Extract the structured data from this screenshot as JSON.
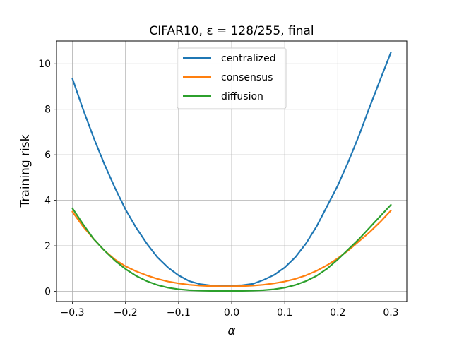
{
  "chart_data": {
    "type": "line",
    "title": "CIFAR10, ε = 128/255, final",
    "xlabel": "α",
    "ylabel": "Training risk",
    "xlim": [
      -0.33,
      0.33
    ],
    "ylim": [
      -0.45,
      11.0
    ],
    "xticks": [
      -0.3,
      -0.2,
      -0.1,
      0.0,
      0.1,
      0.2,
      0.3
    ],
    "xtick_labels": [
      "−0.3",
      "−0.2",
      "−0.1",
      "0.0",
      "0.1",
      "0.2",
      "0.3"
    ],
    "yticks": [
      0,
      2,
      4,
      6,
      8,
      10
    ],
    "ytick_labels": [
      "0",
      "2",
      "4",
      "6",
      "8",
      "10"
    ],
    "grid": true,
    "legend_position": "top-center",
    "x": [
      -0.3,
      -0.28,
      -0.26,
      -0.24,
      -0.22,
      -0.2,
      -0.18,
      -0.16,
      -0.14,
      -0.12,
      -0.1,
      -0.08,
      -0.06,
      -0.04,
      -0.02,
      0.0,
      0.02,
      0.04,
      0.06,
      0.08,
      0.1,
      0.12,
      0.14,
      0.16,
      0.18,
      0.2,
      0.22,
      0.24,
      0.26,
      0.28,
      0.3
    ],
    "series": [
      {
        "name": "centralized",
        "color": "#1f77b4",
        "values": [
          9.35,
          8.0,
          6.75,
          5.6,
          4.55,
          3.6,
          2.8,
          2.1,
          1.5,
          1.05,
          0.7,
          0.45,
          0.32,
          0.26,
          0.25,
          0.25,
          0.27,
          0.33,
          0.5,
          0.72,
          1.05,
          1.5,
          2.1,
          2.85,
          3.75,
          4.65,
          5.7,
          6.85,
          8.1,
          9.3,
          10.5
        ]
      },
      {
        "name": "consensus",
        "color": "#ff7f0e",
        "values": [
          3.5,
          2.85,
          2.3,
          1.8,
          1.4,
          1.1,
          0.88,
          0.7,
          0.55,
          0.43,
          0.35,
          0.29,
          0.25,
          0.23,
          0.22,
          0.22,
          0.23,
          0.25,
          0.29,
          0.35,
          0.43,
          0.55,
          0.7,
          0.9,
          1.15,
          1.45,
          1.8,
          2.2,
          2.6,
          3.05,
          3.55
        ]
      },
      {
        "name": "diffusion",
        "color": "#2ca02c",
        "values": [
          3.65,
          2.95,
          2.3,
          1.8,
          1.35,
          0.98,
          0.68,
          0.45,
          0.28,
          0.16,
          0.09,
          0.05,
          0.03,
          0.02,
          0.02,
          0.02,
          0.02,
          0.03,
          0.05,
          0.09,
          0.16,
          0.28,
          0.45,
          0.68,
          1.0,
          1.4,
          1.85,
          2.3,
          2.8,
          3.3,
          3.8
        ]
      }
    ]
  }
}
